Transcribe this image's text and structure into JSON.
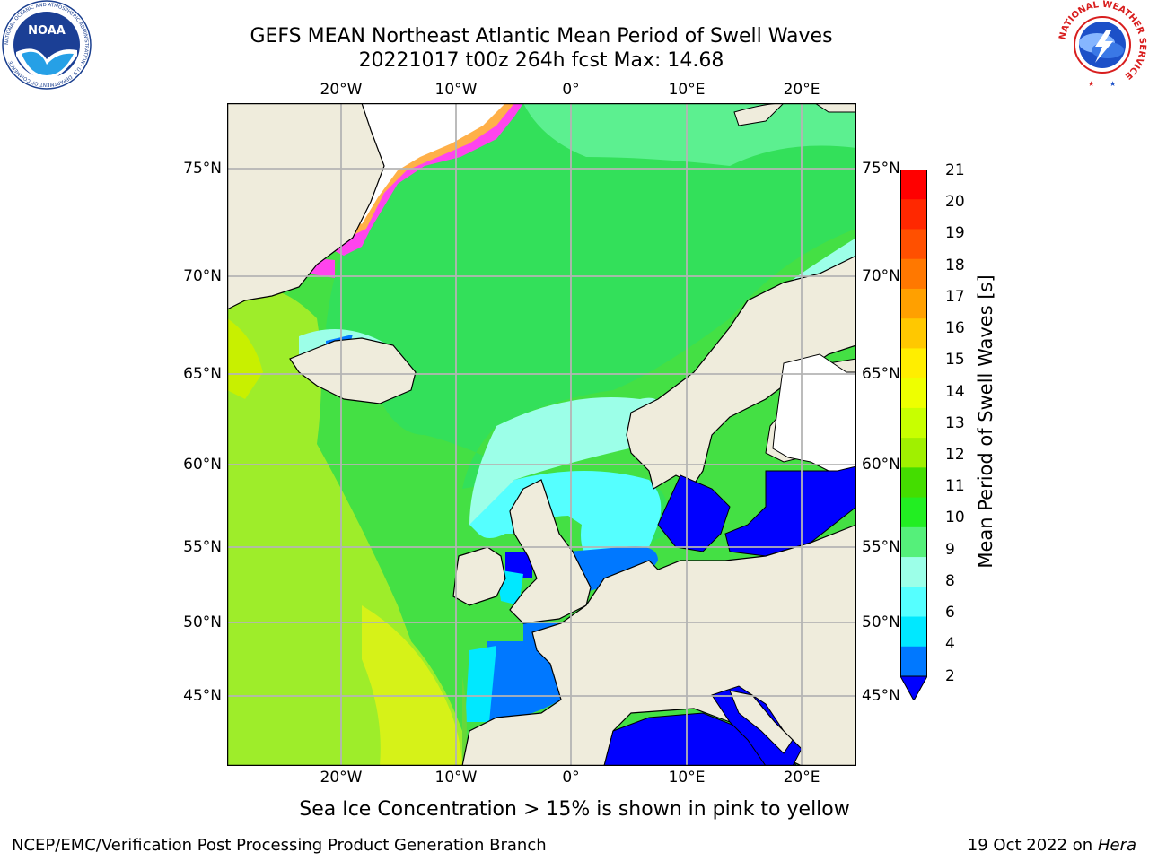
{
  "header": {
    "title_line1": "GEFS MEAN Northeast Atlantic Mean Period of Swell Waves",
    "title_line2": "20221017 t00z 264h fcst   Max: 14.68"
  },
  "logos": {
    "left_name": "NOAA",
    "left_ring_text": "NATIONAL OCEANIC AND ATMOSPHERIC ADMINISTRATION · U.S. DEPARTMENT OF COMMERCE",
    "right_ring_text": "NATIONAL WEATHER SERVICE"
  },
  "map": {
    "lon_ticks_top": [
      "20°W",
      "10°W",
      "0°",
      "10°E",
      "20°E"
    ],
    "lon_ticks_bottom": [
      "20°W",
      "10°W",
      "0°",
      "10°E",
      "20°E"
    ],
    "lat_ticks_left": [
      "75°N",
      "70°N",
      "65°N",
      "60°N",
      "55°N",
      "50°N",
      "45°N"
    ],
    "lat_ticks_right": [
      "75°N",
      "70°N",
      "65°N",
      "60°N",
      "55°N",
      "50°N",
      "45°N"
    ],
    "ocean_color": "#44e044",
    "land_color": "#efecdc",
    "grid_color": "#b4b4b4"
  },
  "colorbar": {
    "title": "Mean Period of Swell Waves [s]",
    "labels": [
      "21",
      "20",
      "19",
      "18",
      "17",
      "16",
      "15",
      "14",
      "13",
      "12",
      "11",
      "10",
      "9",
      "8",
      "6",
      "4",
      "2"
    ],
    "colors_top_to_bottom": [
      "#ff0000",
      "#ff2800",
      "#ff5000",
      "#ff7800",
      "#ffa000",
      "#ffc800",
      "#ffee00",
      "#eeff00",
      "#c8ff00",
      "#a0f000",
      "#44dd00",
      "#22ee22",
      "#55f07a",
      "#9cffe8",
      "#55ffff",
      "#00e8ff",
      "#0078ff"
    ],
    "extend_color": "#0000ff"
  },
  "footer": {
    "note": "Sea Ice Concentration > 15% is shown in pink to yellow",
    "left": "NCEP/EMC/Verification Post Processing Product Generation Branch",
    "right_date": "19 Oct 2022 on",
    "right_host": "Hera"
  }
}
